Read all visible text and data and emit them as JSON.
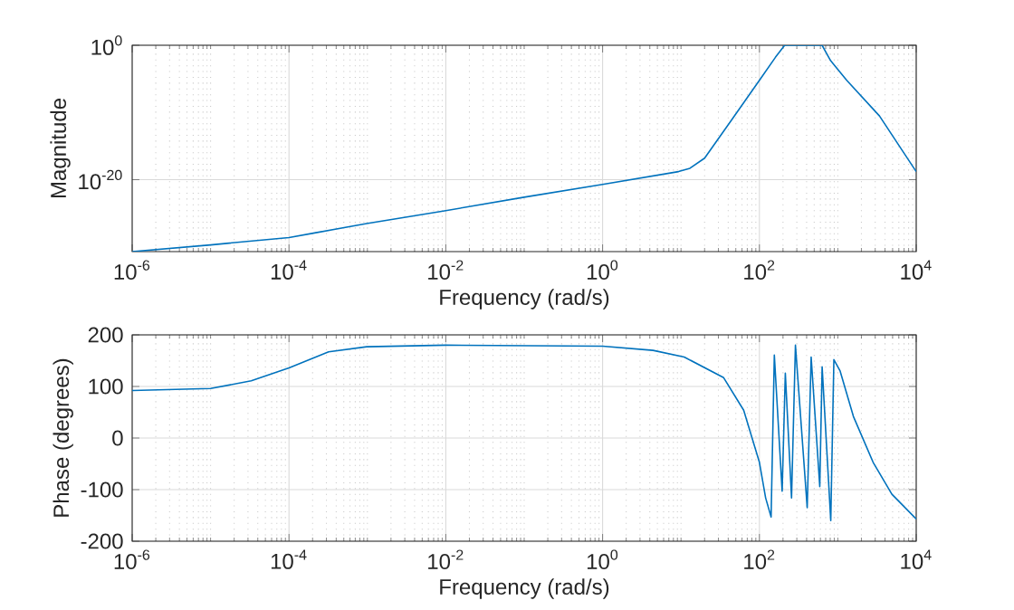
{
  "chart_data": [
    {
      "type": "line",
      "xlabel": "Frequency (rad/s)",
      "ylabel": "Magnitude",
      "log": "xy",
      "grid": true,
      "xlim": [
        1e-06,
        10000.0
      ],
      "ylim": [
        2e-31,
        1
      ],
      "xticks": [
        {
          "value": 1e-06,
          "label": "10$^{-6}$"
        },
        {
          "value": 0.0001,
          "label": "10$^{-4}$"
        },
        {
          "value": 0.01,
          "label": "10$^{-2}$"
        },
        {
          "value": 1,
          "label": "10$^{0}$"
        },
        {
          "value": 100,
          "label": "10$^{2}$"
        },
        {
          "value": 10000,
          "label": "10$^{4}$"
        }
      ],
      "yticks": [
        {
          "value": 1e-20,
          "label": "10$^{-20}$"
        },
        {
          "value": 1,
          "label": "10$^{0}$"
        }
      ],
      "x": [
        1e-06,
        1e-05,
        0.0001,
        0.00022,
        0.00098,
        0.01,
        0.1,
        1,
        9.3,
        13,
        20,
        43,
        100,
        160,
        210,
        630,
        810,
        1300,
        3400,
        10000
      ],
      "series": [
        {
          "color": "#0072bd",
          "values": [
            2e-31,
            2e-30,
            2.5e-29,
            1.3e-28,
            3e-27,
            2.5e-25,
            2.5e-23,
            2e-21,
            1.6e-19,
            5e-19,
            1.6e-17,
            5e-12,
            6e-06,
            0.016,
            1,
            1,
            0.005,
            6e-06,
            3e-11,
            1.6e-19
          ]
        }
      ]
    },
    {
      "type": "line",
      "xlabel": "Frequency (rad/s)",
      "ylabel": "Phase (degrees)",
      "log": "x",
      "grid": true,
      "xlim": [
        1e-06,
        10000.0
      ],
      "ylim": [
        -200,
        200
      ],
      "xticks": [
        {
          "value": 1e-06,
          "label": "10$^{-6}$"
        },
        {
          "value": 0.0001,
          "label": "10$^{-4}$"
        },
        {
          "value": 0.01,
          "label": "10$^{-2}$"
        },
        {
          "value": 1,
          "label": "10$^{0}$"
        },
        {
          "value": 100,
          "label": "10$^{2}$"
        },
        {
          "value": 10000,
          "label": "10$^{4}$"
        }
      ],
      "yticks": [
        -200,
        -100,
        0,
        100,
        200
      ],
      "x": [
        1e-06,
        1e-05,
        3.3e-05,
        0.0001,
        0.00032,
        0.00098,
        0.01,
        1,
        4.4,
        11,
        35,
        63,
        100,
        120,
        141,
        155,
        195,
        214,
        257,
        288,
        407,
        457,
        589,
        631,
        813,
        891,
        1070,
        1580,
        2820,
        4900,
        10000
      ],
      "series": [
        {
          "color": "#0072bd",
          "values": [
            92,
            96,
            111,
            136,
            167,
            177,
            180,
            178,
            170,
            157,
            117,
            54,
            -47,
            -116,
            -153,
            161,
            -103,
            126,
            -116,
            180,
            -135,
            157,
            -94,
            138,
            -160,
            152,
            130,
            42,
            -47,
            -109,
            -157
          ]
        }
      ]
    }
  ]
}
